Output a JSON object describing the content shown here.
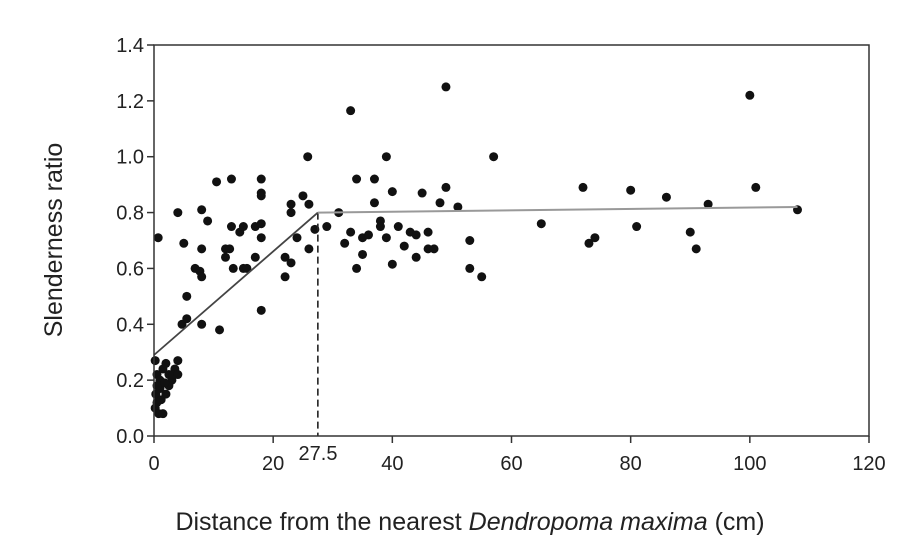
{
  "chart_data": {
    "type": "scatter",
    "title": "",
    "xlabel_prefix": "Distance from the nearest ",
    "xlabel_italic": "Dendropoma maxima",
    "xlabel_suffix": " (cm)",
    "ylabel": "Slenderness ratio",
    "xlim": [
      0,
      120
    ],
    "ylim": [
      0,
      1.4
    ],
    "xticks": [
      0,
      20,
      40,
      60,
      80,
      100,
      120
    ],
    "xtick_labels": [
      "0",
      "20",
      "40",
      "60",
      "80",
      "100",
      "120"
    ],
    "yticks": [
      0,
      0.2,
      0.4,
      0.6,
      0.8,
      1.0,
      1.2,
      1.4
    ],
    "ytick_labels": [
      "0.0",
      "0.2",
      "0.4",
      "0.6",
      "0.8",
      "1.0",
      "1.2",
      "1.4"
    ],
    "breakpoint": {
      "x": 27.5,
      "label": "27.5"
    },
    "fit_line": [
      [
        0,
        0.29
      ],
      [
        27.5,
        0.8
      ],
      [
        108,
        0.82
      ]
    ],
    "grid": false,
    "points": [
      [
        0.2,
        0.27
      ],
      [
        0.5,
        0.22
      ],
      [
        1,
        0.2
      ],
      [
        1.5,
        0.24
      ],
      [
        2,
        0.26
      ],
      [
        2.5,
        0.22
      ],
      [
        3,
        0.2
      ],
      [
        3.5,
        0.24
      ],
      [
        4,
        0.27
      ],
      [
        1,
        0.17
      ],
      [
        0.3,
        0.15
      ],
      [
        0.5,
        0.12
      ],
      [
        1.2,
        0.13
      ],
      [
        2,
        0.15
      ],
      [
        0.2,
        0.1
      ],
      [
        0.8,
        0.08
      ],
      [
        1.5,
        0.08
      ],
      [
        2.5,
        0.18
      ],
      [
        3.2,
        0.22
      ],
      [
        0.5,
        0.18
      ],
      [
        1.8,
        0.19
      ],
      [
        4,
        0.22
      ],
      [
        0.7,
        0.71
      ],
      [
        4,
        0.8
      ],
      [
        5,
        0.69
      ],
      [
        8,
        0.81
      ],
      [
        9,
        0.77
      ],
      [
        8,
        0.67
      ],
      [
        10.5,
        0.91
      ],
      [
        13,
        0.92
      ],
      [
        13,
        0.75
      ],
      [
        14.4,
        0.73
      ],
      [
        15,
        0.75
      ],
      [
        12,
        0.67
      ],
      [
        12.7,
        0.67
      ],
      [
        12,
        0.64
      ],
      [
        13.3,
        0.6
      ],
      [
        15,
        0.6
      ],
      [
        15.6,
        0.6
      ],
      [
        17,
        0.75
      ],
      [
        18,
        0.76
      ],
      [
        18,
        0.71
      ],
      [
        17,
        0.64
      ],
      [
        18,
        0.92
      ],
      [
        18,
        0.87
      ],
      [
        18,
        0.86
      ],
      [
        18,
        0.45
      ],
      [
        6.9,
        0.6
      ],
      [
        7.7,
        0.59
      ],
      [
        8,
        0.57
      ],
      [
        5.5,
        0.5
      ],
      [
        4.7,
        0.4
      ],
      [
        5.5,
        0.42
      ],
      [
        8,
        0.4
      ],
      [
        11,
        0.38
      ],
      [
        25.8,
        1.0
      ],
      [
        25,
        0.86
      ],
      [
        26,
        0.83
      ],
      [
        23,
        0.83
      ],
      [
        23,
        0.8
      ],
      [
        24,
        0.71
      ],
      [
        27,
        0.74
      ],
      [
        29,
        0.75
      ],
      [
        26,
        0.67
      ],
      [
        22,
        0.64
      ],
      [
        23,
        0.62
      ],
      [
        22,
        0.57
      ],
      [
        49,
        1.25
      ],
      [
        33,
        1.165
      ],
      [
        39,
        1.0
      ],
      [
        57,
        1.0
      ],
      [
        34,
        0.92
      ],
      [
        37,
        0.92
      ],
      [
        40,
        0.875
      ],
      [
        45,
        0.87
      ],
      [
        49,
        0.89
      ],
      [
        37,
        0.835
      ],
      [
        48,
        0.835
      ],
      [
        51,
        0.82
      ],
      [
        31,
        0.8
      ],
      [
        38,
        0.77
      ],
      [
        38,
        0.75
      ],
      [
        41,
        0.75
      ],
      [
        33,
        0.73
      ],
      [
        35,
        0.71
      ],
      [
        36,
        0.72
      ],
      [
        39,
        0.71
      ],
      [
        43,
        0.73
      ],
      [
        44,
        0.72
      ],
      [
        46,
        0.73
      ],
      [
        32,
        0.69
      ],
      [
        42,
        0.68
      ],
      [
        53,
        0.7
      ],
      [
        35,
        0.65
      ],
      [
        46,
        0.67
      ],
      [
        47,
        0.67
      ],
      [
        34,
        0.6
      ],
      [
        40,
        0.615
      ],
      [
        44,
        0.64
      ],
      [
        53,
        0.6
      ],
      [
        55,
        0.57
      ],
      [
        65,
        0.76
      ],
      [
        72,
        0.89
      ],
      [
        73,
        0.69
      ],
      [
        74,
        0.71
      ],
      [
        80,
        0.88
      ],
      [
        81,
        0.75
      ],
      [
        86,
        0.855
      ],
      [
        90,
        0.73
      ],
      [
        91,
        0.67
      ],
      [
        93,
        0.83
      ],
      [
        100,
        1.22
      ],
      [
        101,
        0.89
      ],
      [
        108,
        0.81
      ]
    ]
  }
}
